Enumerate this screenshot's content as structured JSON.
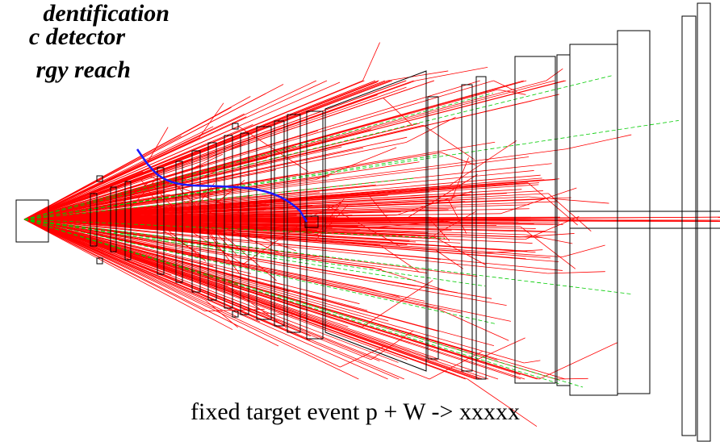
{
  "heading": {
    "lines": [
      "dentification",
      "c detector",
      "rgy reach"
    ]
  },
  "caption": "fixed target event p + W -> xxxxx"
}
